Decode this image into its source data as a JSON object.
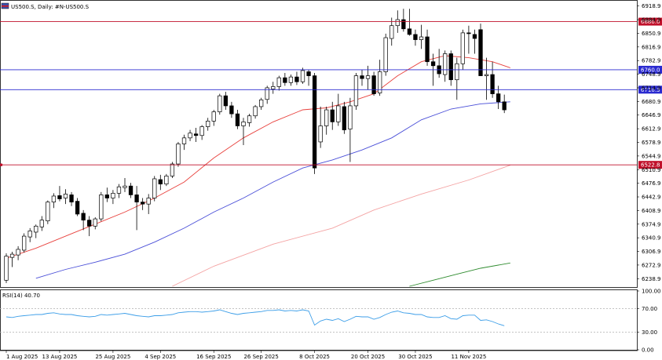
{
  "header": {
    "symbol_label": "US500.S, Daily:  #N-US500.S",
    "flag_icon": "flag-icon"
  },
  "rsi_panel": {
    "label": "RSI(14) 40.70",
    "levels": [
      "100.00",
      "70.00",
      "30.00",
      "0.00"
    ]
  },
  "colors": {
    "bull_fill": "#ffffff",
    "bear_fill": "#000000",
    "candle_stroke": "#000000",
    "ma_fast": "#e8403c",
    "ma_medium": "#4a4fd8",
    "ma_slow": "#f4a3a3",
    "ma_long": "#2e8b2e",
    "red_hline": "#c0102a",
    "blue_hline": "#2a2ad0",
    "rsi_line": "#3c9ee8",
    "rsi_level": "#b0b0b0"
  },
  "chart_data": [
    {
      "type": "candlestick",
      "ylim": [
        6218,
        6932
      ],
      "y_ticks": [
        "6918.9",
        "6884.9",
        "6850.9",
        "6816.9",
        "6782.9",
        "6748.9",
        "6714.9",
        "6680.9",
        "6646.9",
        "6612.9",
        "6578.9",
        "6544.9",
        "6510.9",
        "6476.9",
        "6442.9",
        "6408.9",
        "6374.9",
        "6340.9",
        "6306.9",
        "6272.9",
        "6238.9"
      ],
      "x_ticks": [
        "1 Aug 2025",
        "13 Aug 2025",
        "25 Aug 2025",
        "4 Sep 2025",
        "16 Sep 2025",
        "26 Sep 2025",
        "8 Oct 2025",
        "20 Oct 2025",
        "30 Oct 2025",
        "11 Nov 2025"
      ],
      "x_tick_index": [
        0,
        9,
        18,
        26,
        35,
        43,
        52,
        61,
        69,
        78
      ],
      "horizontal_lines": [
        {
          "label": "6880.0",
          "value": 6880.0,
          "color": "red"
        },
        {
          "label": "6760.0",
          "value": 6760.0,
          "color": "blue"
        },
        {
          "label": "6710.3",
          "value": 6710.3,
          "color": "blue"
        },
        {
          "label": "6522.8",
          "value": 6522.8,
          "color": "red"
        }
      ],
      "ohlc": [
        [
          6235,
          6302,
          6228,
          6295
        ],
        [
          6292,
          6306,
          6268,
          6300
        ],
        [
          6298,
          6320,
          6285,
          6312
        ],
        [
          6310,
          6352,
          6304,
          6345
        ],
        [
          6343,
          6365,
          6330,
          6358
        ],
        [
          6355,
          6374,
          6340,
          6370
        ],
        [
          6368,
          6395,
          6358,
          6385
        ],
        [
          6383,
          6434,
          6375,
          6430
        ],
        [
          6430,
          6452,
          6415,
          6445
        ],
        [
          6446,
          6470,
          6432,
          6438
        ],
        [
          6440,
          6462,
          6425,
          6450
        ],
        [
          6448,
          6455,
          6420,
          6430
        ],
        [
          6432,
          6440,
          6395,
          6400
        ],
        [
          6402,
          6410,
          6360,
          6385
        ],
        [
          6385,
          6395,
          6345,
          6370
        ],
        [
          6370,
          6392,
          6362,
          6388
        ],
        [
          6388,
          6455,
          6382,
          6448
        ],
        [
          6448,
          6466,
          6430,
          6440
        ],
        [
          6440,
          6460,
          6425,
          6452
        ],
        [
          6452,
          6475,
          6440,
          6468
        ],
        [
          6466,
          6490,
          6455,
          6470
        ],
        [
          6470,
          6478,
          6440,
          6448
        ],
        [
          6448,
          6470,
          6360,
          6430
        ],
        [
          6430,
          6440,
          6410,
          6425
        ],
        [
          6425,
          6450,
          6400,
          6440
        ],
        [
          6440,
          6495,
          6432,
          6488
        ],
        [
          6486,
          6498,
          6460,
          6475
        ],
        [
          6475,
          6500,
          6470,
          6495
        ],
        [
          6495,
          6530,
          6490,
          6525
        ],
        [
          6525,
          6580,
          6518,
          6575
        ],
        [
          6575,
          6598,
          6560,
          6590
        ],
        [
          6590,
          6610,
          6582,
          6602
        ],
        [
          6600,
          6615,
          6580,
          6596
        ],
        [
          6596,
          6622,
          6585,
          6618
        ],
        [
          6618,
          6640,
          6608,
          6632
        ],
        [
          6632,
          6660,
          6620,
          6655
        ],
        [
          6655,
          6700,
          6648,
          6695
        ],
        [
          6695,
          6705,
          6660,
          6670
        ],
        [
          6670,
          6680,
          6640,
          6650
        ],
        [
          6650,
          6660,
          6612,
          6620
        ],
        [
          6620,
          6640,
          6572,
          6630
        ],
        [
          6628,
          6650,
          6618,
          6645
        ],
        [
          6645,
          6672,
          6638,
          6668
        ],
        [
          6668,
          6690,
          6660,
          6685
        ],
        [
          6686,
          6720,
          6675,
          6715
        ],
        [
          6712,
          6730,
          6700,
          6718
        ],
        [
          6718,
          6745,
          6708,
          6740
        ],
        [
          6740,
          6752,
          6720,
          6728
        ],
        [
          6728,
          6748,
          6720,
          6742
        ],
        [
          6742,
          6755,
          6722,
          6730
        ],
        [
          6730,
          6765,
          6725,
          6758
        ],
        [
          6755,
          6760,
          6720,
          6745
        ],
        [
          6745,
          6752,
          6500,
          6515
        ],
        [
          6580,
          6668,
          6565,
          6620
        ],
        [
          6620,
          6668,
          6598,
          6660
        ],
        [
          6660,
          6680,
          6610,
          6630
        ],
        [
          6630,
          6700,
          6620,
          6670
        ],
        [
          6668,
          6680,
          6600,
          6610
        ],
        [
          6612,
          6690,
          6530,
          6670
        ],
        [
          6670,
          6752,
          6660,
          6745
        ],
        [
          6745,
          6760,
          6720,
          6738
        ],
        [
          6738,
          6770,
          6710,
          6745
        ],
        [
          6745,
          6755,
          6695,
          6700
        ],
        [
          6702,
          6785,
          6695,
          6755
        ],
        [
          6755,
          6850,
          6745,
          6840
        ],
        [
          6838,
          6890,
          6820,
          6870
        ],
        [
          6870,
          6908,
          6852,
          6885
        ],
        [
          6885,
          6912,
          6855,
          6862
        ],
        [
          6862,
          6912,
          6845,
          6848
        ],
        [
          6848,
          6860,
          6820,
          6835
        ],
        [
          6835,
          6872,
          6812,
          6842
        ],
        [
          6842,
          6860,
          6770,
          6780
        ],
        [
          6780,
          6800,
          6720,
          6770
        ],
        [
          6770,
          6812,
          6740,
          6750
        ],
        [
          6748,
          6808,
          6730,
          6800
        ],
        [
          6800,
          6808,
          6720,
          6735
        ],
        [
          6735,
          6790,
          6685,
          6775
        ],
        [
          6775,
          6860,
          6760,
          6852
        ],
        [
          6852,
          6870,
          6800,
          6850
        ],
        [
          6848,
          6860,
          6800,
          6838
        ],
        [
          6860,
          6875,
          6745,
          6745
        ],
        [
          6745,
          6790,
          6685,
          6748
        ],
        [
          6748,
          6780,
          6690,
          6700
        ],
        [
          6700,
          6720,
          6662,
          6680
        ],
        [
          6680,
          6698,
          6652,
          6660
        ]
      ],
      "ma_fast_series": [
        [
          0,
          6290
        ],
        [
          5,
          6315
        ],
        [
          10,
          6345
        ],
        [
          15,
          6375
        ],
        [
          20,
          6405
        ],
        [
          25,
          6440
        ],
        [
          30,
          6480
        ],
        [
          35,
          6540
        ],
        [
          40,
          6590
        ],
        [
          45,
          6630
        ],
        [
          50,
          6660
        ],
        [
          54,
          6665
        ],
        [
          58,
          6680
        ],
        [
          62,
          6700
        ],
        [
          66,
          6745
        ],
        [
          70,
          6780
        ],
        [
          74,
          6795
        ],
        [
          78,
          6790
        ],
        [
          82,
          6780
        ],
        [
          85,
          6765
        ]
      ],
      "ma_medium_series": [
        [
          5,
          6240
        ],
        [
          10,
          6262
        ],
        [
          15,
          6280
        ],
        [
          20,
          6300
        ],
        [
          25,
          6330
        ],
        [
          30,
          6365
        ],
        [
          35,
          6405
        ],
        [
          40,
          6440
        ],
        [
          45,
          6480
        ],
        [
          50,
          6515
        ],
        [
          55,
          6535
        ],
        [
          60,
          6560
        ],
        [
          65,
          6590
        ],
        [
          70,
          6635
        ],
        [
          75,
          6662
        ],
        [
          80,
          6675
        ],
        [
          85,
          6680
        ]
      ],
      "ma_slow_series": [
        [
          28,
          6220
        ],
        [
          35,
          6270
        ],
        [
          45,
          6325
        ],
        [
          55,
          6365
        ],
        [
          62,
          6410
        ],
        [
          70,
          6450
        ],
        [
          78,
          6485
        ],
        [
          85,
          6522
        ]
      ],
      "ma_long_series": [
        [
          68,
          6220
        ],
        [
          72,
          6235
        ],
        [
          76,
          6250
        ],
        [
          80,
          6265
        ],
        [
          85,
          6278
        ]
      ]
    },
    {
      "type": "line",
      "title": "RSI(14) 40.70",
      "ylim": [
        0,
        100
      ],
      "levels": [
        70,
        30
      ],
      "values": [
        56,
        55,
        57,
        58,
        59,
        60,
        60,
        62,
        63,
        61,
        60,
        60,
        58,
        57,
        56,
        57,
        60,
        59,
        60,
        61,
        62,
        60,
        58,
        57,
        56,
        58,
        58,
        59,
        60,
        63,
        64,
        65,
        65,
        64,
        65,
        66,
        68,
        65,
        62,
        60,
        62,
        63,
        64,
        65,
        67,
        67,
        68,
        66,
        67,
        66,
        68,
        66,
        42,
        49,
        52,
        50,
        53,
        48,
        52,
        57,
        56,
        56,
        52,
        55,
        60,
        64,
        66,
        63,
        62,
        60,
        60,
        56,
        55,
        55,
        58,
        53,
        52,
        58,
        59,
        59,
        50,
        51,
        48,
        44,
        41
      ]
    }
  ]
}
